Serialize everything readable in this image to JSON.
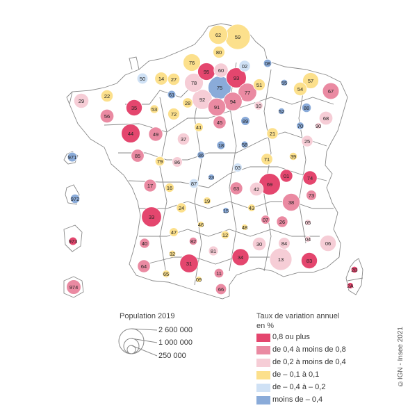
{
  "colors": {
    "c1": "#e4466e",
    "c2": "#ea8aa2",
    "c3": "#f6cdd6",
    "c4": "#fce08c",
    "c5": "#cfe1f5",
    "c6": "#8aabd9",
    "outline": "#777777",
    "bubble_outline": "#ffffff"
  },
  "legend": {
    "population_title": "Population 2019",
    "population_sizes": [
      "2 600 000",
      "1 000 000",
      "250 000"
    ],
    "rate_title_line1": "Taux de variation annuel",
    "rate_title_line2": "en %",
    "classes": [
      {
        "label": "0,8 ou plus",
        "color": "#e4466e"
      },
      {
        "label": "de 0,4 à moins de 0,8",
        "color": "#ea8aa2"
      },
      {
        "label": "de 0,2 à moins de 0,4",
        "color": "#f6cdd6"
      },
      {
        "label": "de – 0,1 à 0,1",
        "color": "#fce08c"
      },
      {
        "label": "de – 0,4 à  – 0,2",
        "color": "#cfe1f5"
      },
      {
        "label": "moins de – 0,4",
        "color": "#8aabd9"
      }
    ]
  },
  "credit": "©IGN - Insee 2021",
  "departments": [
    {
      "code": "62",
      "cls": 4,
      "pop": 1.47
    },
    {
      "code": "59",
      "cls": 4,
      "pop": 2.61
    },
    {
      "code": "80",
      "cls": 4,
      "pop": 0.57
    },
    {
      "code": "76",
      "cls": 4,
      "pop": 1.25
    },
    {
      "code": "60",
      "cls": 3,
      "pop": 0.83
    },
    {
      "code": "02",
      "cls": 5,
      "pop": 0.53
    },
    {
      "code": "08",
      "cls": 6,
      "pop": 0.27
    },
    {
      "code": "95",
      "cls": 1,
      "pop": 1.25
    },
    {
      "code": "93",
      "cls": 1,
      "pop": 1.65
    },
    {
      "code": "50",
      "cls": 5,
      "pop": 0.5
    },
    {
      "code": "14",
      "cls": 4,
      "pop": 0.69
    },
    {
      "code": "27",
      "cls": 4,
      "pop": 0.6
    },
    {
      "code": "78",
      "cls": 3,
      "pop": 1.45
    },
    {
      "code": "75",
      "cls": 6,
      "pop": 2.17
    },
    {
      "code": "77",
      "cls": 2,
      "pop": 1.42
    },
    {
      "code": "51",
      "cls": 4,
      "pop": 0.57
    },
    {
      "code": "55",
      "cls": 6,
      "pop": 0.18
    },
    {
      "code": "57",
      "cls": 4,
      "pop": 1.05
    },
    {
      "code": "54",
      "cls": 4,
      "pop": 0.73
    },
    {
      "code": "67",
      "cls": 2,
      "pop": 1.13
    },
    {
      "code": "61",
      "cls": 6,
      "pop": 0.28
    },
    {
      "code": "22",
      "cls": 4,
      "pop": 0.6
    },
    {
      "code": "29",
      "cls": 3,
      "pop": 0.91
    },
    {
      "code": "92",
      "cls": 3,
      "pop": 1.62
    },
    {
      "code": "91",
      "cls": 2,
      "pop": 1.3
    },
    {
      "code": "94",
      "cls": 2,
      "pop": 1.4
    },
    {
      "code": "10",
      "cls": 3,
      "pop": 0.31
    },
    {
      "code": "88",
      "cls": 6,
      "pop": 0.36
    },
    {
      "code": "28",
      "cls": 4,
      "pop": 0.43
    },
    {
      "code": "52",
      "cls": 6,
      "pop": 0.17
    },
    {
      "code": "35",
      "cls": 1,
      "pop": 1.08
    },
    {
      "code": "53",
      "cls": 4,
      "pop": 0.31
    },
    {
      "code": "72",
      "cls": 4,
      "pop": 0.57
    },
    {
      "code": "56",
      "cls": 2,
      "pop": 0.76
    },
    {
      "code": "45",
      "cls": 2,
      "pop": 0.68
    },
    {
      "code": "89",
      "cls": 6,
      "pop": 0.33
    },
    {
      "code": "68",
      "cls": 3,
      "pop": 0.76
    },
    {
      "code": "70",
      "cls": 6,
      "pop": 0.23
    },
    {
      "code": "90",
      "cls": 3,
      "pop": 0.14
    },
    {
      "code": "41",
      "cls": 4,
      "pop": 0.33
    },
    {
      "code": "21",
      "cls": 4,
      "pop": 0.53
    },
    {
      "code": "44",
      "cls": 1,
      "pop": 1.43
    },
    {
      "code": "49",
      "cls": 2,
      "pop": 0.82
    },
    {
      "code": "37",
      "cls": 3,
      "pop": 0.61
    },
    {
      "code": "18",
      "cls": 6,
      "pop": 0.3
    },
    {
      "code": "58",
      "cls": 6,
      "pop": 0.2
    },
    {
      "code": "25",
      "cls": 3,
      "pop": 0.54
    },
    {
      "code": "971",
      "cls": 6,
      "pop": 0.38
    },
    {
      "code": "85",
      "cls": 2,
      "pop": 0.69
    },
    {
      "code": "79",
      "cls": 4,
      "pop": 0.37
    },
    {
      "code": "86",
      "cls": 3,
      "pop": 0.44
    },
    {
      "code": "36",
      "cls": 6,
      "pop": 0.22
    },
    {
      "code": "71",
      "cls": 4,
      "pop": 0.55
    },
    {
      "code": "39",
      "cls": 4,
      "pop": 0.26
    },
    {
      "code": "03",
      "cls": 5,
      "pop": 0.33
    },
    {
      "code": "01",
      "cls": 1,
      "pop": 0.66
    },
    {
      "code": "74",
      "cls": 1,
      "pop": 0.83
    },
    {
      "code": "17",
      "cls": 2,
      "pop": 0.65
    },
    {
      "code": "16",
      "cls": 4,
      "pop": 0.35
    },
    {
      "code": "87",
      "cls": 5,
      "pop": 0.37
    },
    {
      "code": "23",
      "cls": 6,
      "pop": 0.12
    },
    {
      "code": "63",
      "cls": 2,
      "pop": 0.66
    },
    {
      "code": "42",
      "cls": 3,
      "pop": 0.76
    },
    {
      "code": "69",
      "cls": 1,
      "pop": 1.88
    },
    {
      "code": "73",
      "cls": 2,
      "pop": 0.44
    },
    {
      "code": "972",
      "cls": 6,
      "pop": 0.36
    },
    {
      "code": "24",
      "cls": 4,
      "pop": 0.41
    },
    {
      "code": "19",
      "cls": 4,
      "pop": 0.24
    },
    {
      "code": "15",
      "cls": 6,
      "pop": 0.14
    },
    {
      "code": "43",
      "cls": 4,
      "pop": 0.23
    },
    {
      "code": "38",
      "cls": 2,
      "pop": 1.27
    },
    {
      "code": "33",
      "cls": 1,
      "pop": 1.62
    },
    {
      "code": "46",
      "cls": 4,
      "pop": 0.17
    },
    {
      "code": "48",
      "cls": 4,
      "pop": 0.08
    },
    {
      "code": "07",
      "cls": 2,
      "pop": 0.33
    },
    {
      "code": "26",
      "cls": 2,
      "pop": 0.52
    },
    {
      "code": "05",
      "cls": 3,
      "pop": 0.14
    },
    {
      "code": "47",
      "cls": 4,
      "pop": 0.33
    },
    {
      "code": "82",
      "cls": 2,
      "pop": 0.26
    },
    {
      "code": "12",
      "cls": 4,
      "pop": 0.28
    },
    {
      "code": "973",
      "cls": 1,
      "pop": 0.28
    },
    {
      "code": "40",
      "cls": 2,
      "pop": 0.41
    },
    {
      "code": "84",
      "cls": 3,
      "pop": 0.56
    },
    {
      "code": "04",
      "cls": 3,
      "pop": 0.16
    },
    {
      "code": "06",
      "cls": 3,
      "pop": 1.09
    },
    {
      "code": "32",
      "cls": 4,
      "pop": 0.19
    },
    {
      "code": "81",
      "cls": 3,
      "pop": 0.39
    },
    {
      "code": "30",
      "cls": 3,
      "pop": 0.75
    },
    {
      "code": "13",
      "cls": 3,
      "pop": 2.04
    },
    {
      "code": "83",
      "cls": 1,
      "pop": 1.08
    },
    {
      "code": "31",
      "cls": 1,
      "pop": 1.4
    },
    {
      "code": "34",
      "cls": 1,
      "pop": 1.18
    },
    {
      "code": "64",
      "cls": 2,
      "pop": 0.68
    },
    {
      "code": "65",
      "cls": 4,
      "pop": 0.23
    },
    {
      "code": "09",
      "cls": 4,
      "pop": 0.15
    },
    {
      "code": "11",
      "cls": 2,
      "pop": 0.37
    },
    {
      "code": "66",
      "cls": 2,
      "pop": 0.48
    },
    {
      "code": "974",
      "cls": 2,
      "pop": 0.86
    },
    {
      "code": "2B",
      "cls": 1,
      "pop": 0.18
    },
    {
      "code": "2A",
      "cls": 1,
      "pop": 0.16
    }
  ]
}
